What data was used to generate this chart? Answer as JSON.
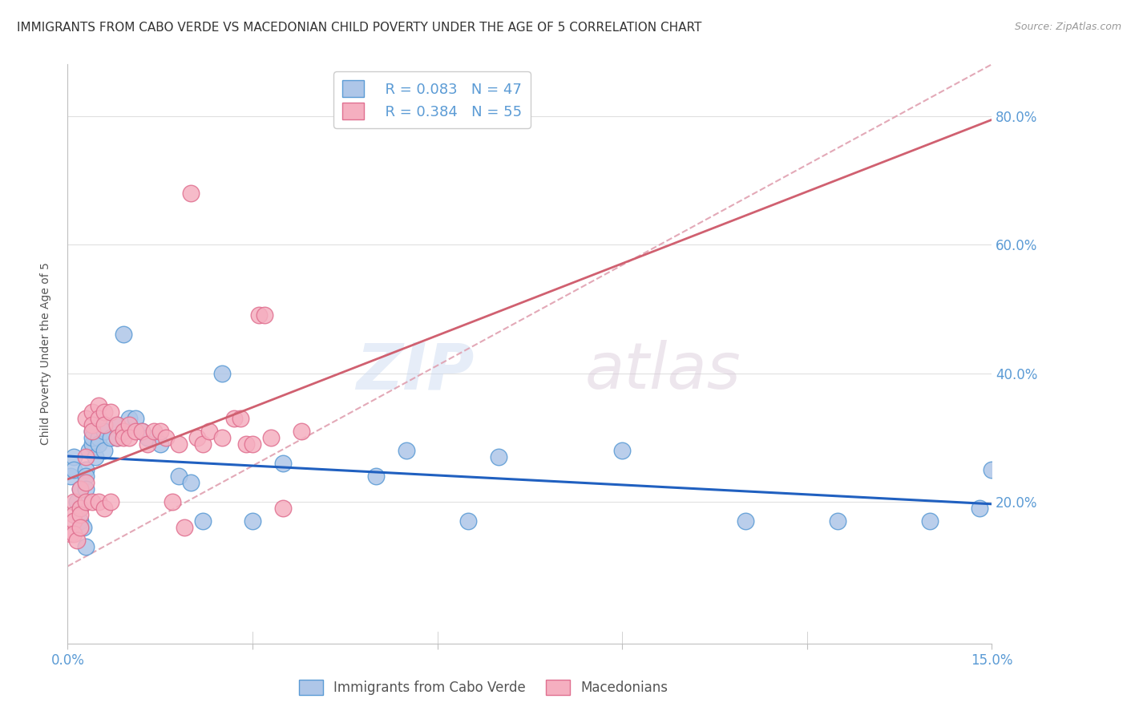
{
  "title": "IMMIGRANTS FROM CABO VERDE VS MACEDONIAN CHILD POVERTY UNDER THE AGE OF 5 CORRELATION CHART",
  "source": "Source: ZipAtlas.com",
  "ylabel": "Child Poverty Under the Age of 5",
  "xlim": [
    0.0,
    0.15
  ],
  "ylim": [
    -0.02,
    0.88
  ],
  "yticks": [
    0.2,
    0.4,
    0.6,
    0.8
  ],
  "ytick_labels": [
    "20.0%",
    "40.0%",
    "60.0%",
    "80.0%"
  ],
  "xticks": [
    0.0,
    0.03,
    0.06,
    0.09,
    0.12,
    0.15
  ],
  "xtick_labels": [
    "0.0%",
    "",
    "",
    "",
    "",
    "15.0%"
  ],
  "cabo_verde_color": "#aec6e8",
  "macedonian_color": "#f5afc0",
  "cabo_verde_edge": "#5b9bd5",
  "macedonian_edge": "#e07090",
  "legend_r1": "R = 0.083",
  "legend_n1": "N = 47",
  "legend_r2": "R = 0.384",
  "legend_n2": "N = 55",
  "cabo_verde_label": "Immigrants from Cabo Verde",
  "macedonian_label": "Macedonians",
  "cabo_verde_x": [
    0.0005,
    0.001,
    0.001,
    0.0015,
    0.002,
    0.002,
    0.002,
    0.0025,
    0.003,
    0.003,
    0.003,
    0.003,
    0.0035,
    0.004,
    0.004,
    0.004,
    0.0045,
    0.005,
    0.005,
    0.006,
    0.006,
    0.006,
    0.007,
    0.008,
    0.008,
    0.009,
    0.01,
    0.011,
    0.012,
    0.013,
    0.015,
    0.018,
    0.02,
    0.022,
    0.025,
    0.03,
    0.035,
    0.05,
    0.055,
    0.065,
    0.07,
    0.09,
    0.11,
    0.125,
    0.14,
    0.148,
    0.15
  ],
  "cabo_verde_y": [
    0.24,
    0.27,
    0.25,
    0.2,
    0.22,
    0.19,
    0.17,
    0.16,
    0.25,
    0.24,
    0.22,
    0.13,
    0.28,
    0.29,
    0.31,
    0.3,
    0.27,
    0.3,
    0.29,
    0.32,
    0.31,
    0.28,
    0.3,
    0.32,
    0.3,
    0.46,
    0.33,
    0.33,
    0.31,
    0.3,
    0.29,
    0.24,
    0.23,
    0.17,
    0.4,
    0.17,
    0.26,
    0.24,
    0.28,
    0.17,
    0.27,
    0.28,
    0.17,
    0.17,
    0.17,
    0.19,
    0.25
  ],
  "macedonian_x": [
    0.0005,
    0.001,
    0.001,
    0.001,
    0.001,
    0.0015,
    0.002,
    0.002,
    0.002,
    0.002,
    0.003,
    0.003,
    0.003,
    0.003,
    0.004,
    0.004,
    0.004,
    0.004,
    0.005,
    0.005,
    0.005,
    0.006,
    0.006,
    0.006,
    0.007,
    0.007,
    0.008,
    0.008,
    0.009,
    0.009,
    0.01,
    0.01,
    0.011,
    0.012,
    0.013,
    0.014,
    0.015,
    0.016,
    0.017,
    0.018,
    0.019,
    0.02,
    0.021,
    0.022,
    0.023,
    0.025,
    0.027,
    0.028,
    0.029,
    0.03,
    0.031,
    0.032,
    0.033,
    0.035,
    0.038
  ],
  "macedonian_y": [
    0.15,
    0.2,
    0.18,
    0.17,
    0.15,
    0.14,
    0.22,
    0.19,
    0.18,
    0.16,
    0.33,
    0.27,
    0.23,
    0.2,
    0.34,
    0.32,
    0.31,
    0.2,
    0.35,
    0.33,
    0.2,
    0.34,
    0.32,
    0.19,
    0.34,
    0.2,
    0.32,
    0.3,
    0.31,
    0.3,
    0.32,
    0.3,
    0.31,
    0.31,
    0.29,
    0.31,
    0.31,
    0.3,
    0.2,
    0.29,
    0.16,
    0.68,
    0.3,
    0.29,
    0.31,
    0.3,
    0.33,
    0.33,
    0.29,
    0.29,
    0.49,
    0.49,
    0.3,
    0.19,
    0.31
  ],
  "watermark_zip": "ZIP",
  "watermark_atlas": "atlas",
  "background_color": "#ffffff",
  "grid_color": "#e0e0e0",
  "axis_color": "#c0c0c0",
  "tick_color": "#5b9bd5",
  "title_color": "#333333",
  "title_fontsize": 11,
  "label_fontsize": 10,
  "reg_blue_color": "#2060c0",
  "reg_pink_color": "#d06070",
  "diag_color": "#e0a0b0"
}
